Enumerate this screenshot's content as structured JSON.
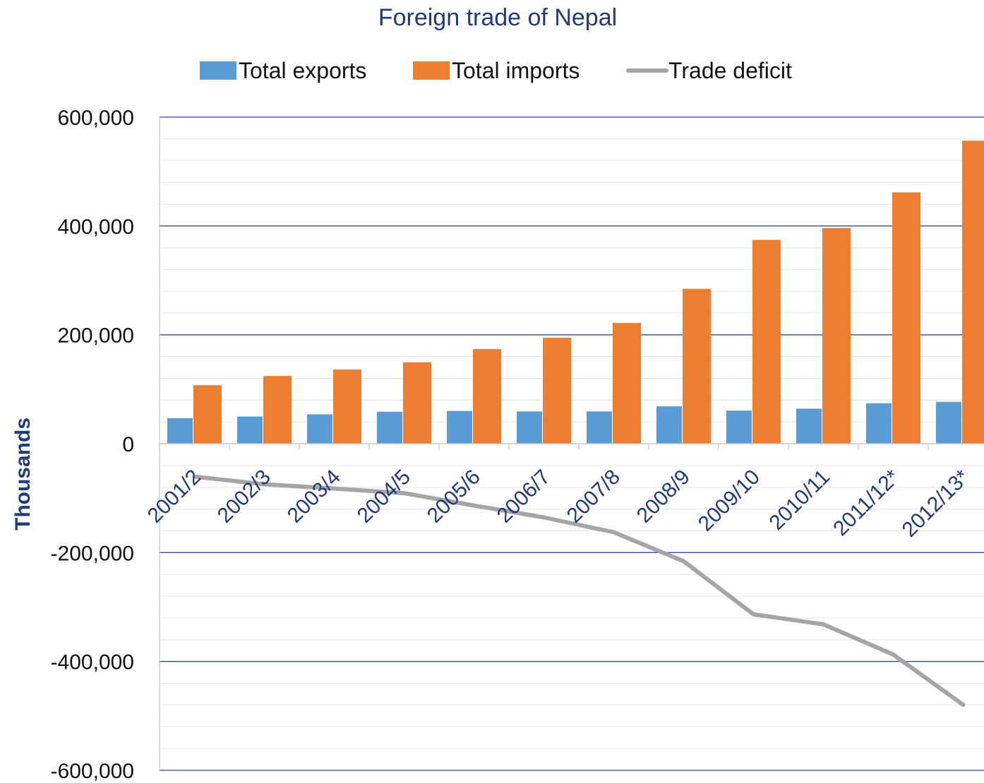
{
  "chart_data": {
    "type": "bar",
    "title": "Foreign trade of Nepal",
    "ylabel": "Thousands",
    "xlabel": "",
    "categories": [
      "2001/2",
      "2002/3",
      "2003/4",
      "2004/5",
      "2005/6",
      "2006/7",
      "2007/8",
      "2008/9",
      "2009/10",
      "2010/11",
      "2011/12*",
      "2012/13*"
    ],
    "series": [
      {
        "name": "Total exports",
        "type": "bar",
        "color": "#5b9bd5",
        "values": [
          46900,
          49900,
          53900,
          58700,
          60200,
          59300,
          59300,
          68600,
          60800,
          64300,
          74300,
          76900
        ]
      },
      {
        "name": "Total imports",
        "type": "bar",
        "color": "#ed7d31",
        "values": [
          107400,
          124400,
          136300,
          149500,
          173800,
          194700,
          221900,
          284500,
          374300,
          396200,
          461700,
          556700
        ]
      },
      {
        "name": "Trade deficit",
        "type": "line",
        "color": "#a5a5a5",
        "values": [
          -60500,
          -74500,
          -82400,
          -90800,
          -113600,
          -135400,
          -162600,
          -215900,
          -313500,
          -331900,
          -387400,
          -479800
        ]
      }
    ],
    "ylim": [
      -600000,
      600000
    ],
    "yticks": [
      "600,000",
      "400,000",
      "200,000",
      "0",
      "-200,000",
      "-400,000",
      "-600,000"
    ],
    "ytick_values": [
      600000,
      400000,
      200000,
      0,
      -200000,
      -400000,
      -600000
    ],
    "legend_position": "top",
    "grid": true,
    "colors": {
      "title": "#1f3b7a",
      "axis_title": "#1f3b7a",
      "x_ticks": "#1f3b7a",
      "major_grid": "#2f4f9f",
      "minor_grid": "#e6e6e6"
    }
  }
}
